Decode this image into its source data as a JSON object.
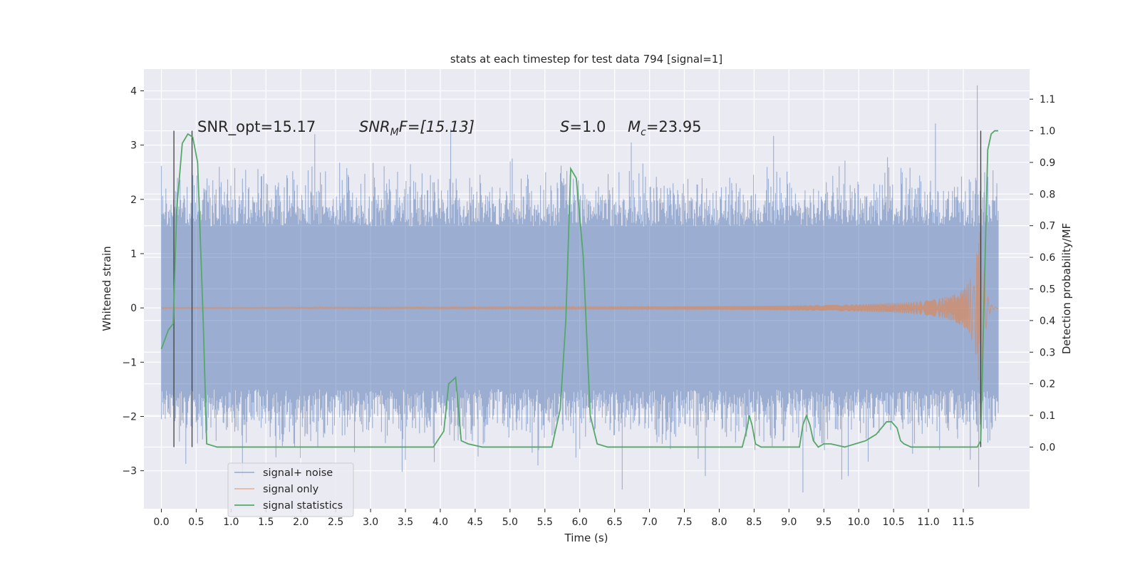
{
  "chart_data": {
    "type": "line",
    "title": "stats at each timestep for test data 794 [signal=1]",
    "xlabel": "Time (s)",
    "ylabel": "Whitened strain",
    "y2label": "Detection probability/MF",
    "xlim": [
      -0.25,
      12.45
    ],
    "ylim": [
      -3.7,
      4.4
    ],
    "y2lim": [
      -0.195,
      1.195
    ],
    "x_ticks": [
      0.0,
      0.5,
      1.0,
      1.5,
      2.0,
      2.5,
      3.0,
      3.5,
      4.0,
      4.5,
      5.0,
      5.5,
      6.0,
      6.5,
      7.0,
      7.5,
      8.0,
      8.5,
      9.0,
      9.5,
      10.0,
      10.5,
      11.0,
      11.5
    ],
    "x_tick_labels": [
      "0.0",
      "0.5",
      "1.0",
      "1.5",
      "2.0",
      "2.5",
      "3.0",
      "3.5",
      "4.0",
      "4.5",
      "5.0",
      "5.5",
      "6.0",
      "6.5",
      "7.0",
      "7.5",
      "8.0",
      "8.5",
      "9.0",
      "9.5",
      "10.0",
      "10.5",
      "11.0",
      "11.5"
    ],
    "y_ticks": [
      -3,
      -2,
      -1,
      0,
      1,
      2,
      3,
      4
    ],
    "y_tick_labels": [
      "−3",
      "−2",
      "−1",
      "0",
      "1",
      "2",
      "3",
      "4"
    ],
    "y2_ticks": [
      0.0,
      0.1,
      0.2,
      0.3,
      0.4,
      0.5,
      0.6,
      0.7,
      0.8,
      0.9,
      1.0,
      1.1
    ],
    "y2_tick_labels": [
      "0.0",
      "0.1",
      "0.2",
      "0.3",
      "0.4",
      "0.5",
      "0.6",
      "0.7",
      "0.8",
      "0.9",
      "1.0",
      "1.1"
    ],
    "grid": true,
    "legend_position": "bottom-left",
    "legend": [
      {
        "label": "signal+ noise",
        "color": "#4c72b0"
      },
      {
        "label": "signal only",
        "color": "#dd8452"
      },
      {
        "label": "signal statistics",
        "color": "#55a868"
      }
    ],
    "annotations": {
      "snr_opt": "SNR_opt=15.17",
      "snr_mf_name": "SNR",
      "snr_mf_sub": "M",
      "snr_mf_rest": "F=[15.13]",
      "s_name": "S",
      "s_value": "=1.0",
      "mc_name": "M",
      "mc_sub": "c",
      "mc_value": "=23.95"
    },
    "noise_envelope": {
      "t": [
        0.0,
        12.0
      ],
      "lower_typical": -1.5,
      "upper_typical": 1.5,
      "spikes": [
        {
          "t": 0.18,
          "y": -2.2
        },
        {
          "t": 0.45,
          "y": 2.4
        },
        {
          "t": 0.95,
          "y": -2.2
        },
        {
          "t": 1.9,
          "y": -2.5
        },
        {
          "t": 2.2,
          "y": 3.2
        },
        {
          "t": 3.5,
          "y": -2.8
        },
        {
          "t": 3.9,
          "y": -2.5
        },
        {
          "t": 4.15,
          "y": 3.3
        },
        {
          "t": 5.4,
          "y": -2.9
        },
        {
          "t": 6.0,
          "y": -2.6
        },
        {
          "t": 7.3,
          "y": -2.6
        },
        {
          "t": 7.8,
          "y": -3.1
        },
        {
          "t": 9.2,
          "y": -3.4
        },
        {
          "t": 9.85,
          "y": -3.1
        },
        {
          "t": 10.8,
          "y": -2.5
        },
        {
          "t": 11.1,
          "y": 3.4
        },
        {
          "t": 11.6,
          "y": -2.8
        },
        {
          "t": 11.7,
          "y": 4.1
        },
        {
          "t": 11.72,
          "y": -3.3
        }
      ]
    },
    "signal_only": {
      "t_merger": 11.75,
      "amplitude_at_merger": 2.7,
      "amplitude_at_7s": 0.02
    },
    "signal_statistics": {
      "x": [
        0.0,
        0.1,
        0.17,
        0.22,
        0.3,
        0.38,
        0.45,
        0.52,
        0.6,
        0.65,
        0.8,
        1.0,
        2.0,
        3.0,
        3.9,
        4.05,
        4.12,
        4.17,
        4.22,
        4.3,
        4.4,
        4.6,
        5.0,
        5.6,
        5.72,
        5.8,
        5.87,
        5.95,
        6.05,
        6.15,
        6.25,
        6.4,
        6.6,
        7.0,
        8.0,
        8.33,
        8.4,
        8.43,
        8.47,
        8.52,
        8.6,
        8.8,
        9.15,
        9.2,
        9.25,
        9.3,
        9.35,
        9.42,
        9.5,
        9.6,
        9.8,
        9.95,
        10.1,
        10.25,
        10.4,
        10.47,
        10.55,
        10.6,
        10.65,
        10.75,
        11.0,
        11.5,
        11.7,
        11.75,
        11.78,
        11.85,
        11.9,
        11.95,
        12.0
      ],
      "y": [
        0.31,
        0.37,
        0.39,
        0.75,
        0.96,
        0.99,
        0.98,
        0.9,
        0.4,
        0.01,
        0.0,
        0.0,
        0.0,
        0.0,
        0.0,
        0.05,
        0.2,
        0.21,
        0.22,
        0.02,
        0.01,
        0.0,
        0.0,
        0.0,
        0.12,
        0.4,
        0.88,
        0.85,
        0.6,
        0.1,
        0.01,
        0.0,
        0.0,
        0.0,
        0.0,
        0.0,
        0.06,
        0.1,
        0.07,
        0.01,
        0.0,
        0.0,
        0.0,
        0.07,
        0.1,
        0.07,
        0.02,
        0.0,
        0.01,
        0.01,
        0.0,
        0.01,
        0.02,
        0.04,
        0.08,
        0.08,
        0.06,
        0.02,
        0.01,
        0.0,
        0.0,
        0.0,
        0.0,
        0.02,
        0.3,
        0.94,
        0.99,
        1.0,
        1.0
      ]
    },
    "vertical_lines_x": [
      0.18,
      0.44,
      11.75
    ]
  }
}
